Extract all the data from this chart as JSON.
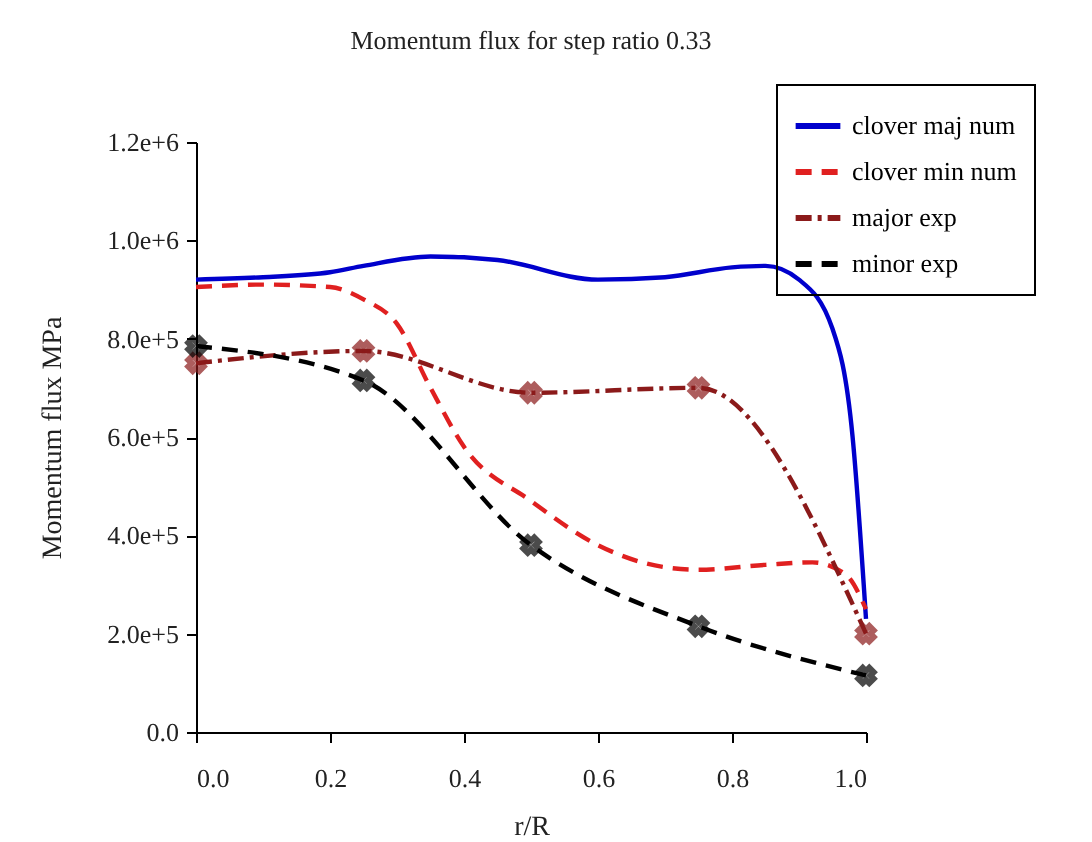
{
  "chart_data": {
    "type": "line",
    "title": "Momentum flux for step ratio 0.33",
    "xlabel": "r/R",
    "ylabel": "Momentum flux MPa",
    "xlim": [
      0,
      1
    ],
    "ylim": [
      0,
      1200000
    ],
    "xticks": [
      {
        "value": 0,
        "label": "0.0"
      },
      {
        "value": 0.2,
        "label": "0.2"
      },
      {
        "value": 0.4,
        "label": "0.4"
      },
      {
        "value": 0.6,
        "label": "0.6"
      },
      {
        "value": 0.8,
        "label": "0.8"
      },
      {
        "value": 1,
        "label": "1.0"
      }
    ],
    "yticks": [
      {
        "value": 0,
        "label": "0.0"
      },
      {
        "value": 200000,
        "label": "2.0e+5"
      },
      {
        "value": 400000,
        "label": "4.0e+5"
      },
      {
        "value": 600000,
        "label": "6.0e+5"
      },
      {
        "value": 800000,
        "label": "8.0e+5"
      },
      {
        "value": 1000000,
        "label": "1.0e+6"
      },
      {
        "value": 1200000,
        "label": "1.2e+6"
      }
    ],
    "grid": false,
    "legend": "top right",
    "series": [
      {
        "name": "clover maj num",
        "color": "#0000cc",
        "line_style": "solid",
        "marker": "none",
        "x": [
          0,
          0.1,
          0.2,
          0.25,
          0.35,
          0.45,
          0.6,
          0.7,
          0.8,
          0.85,
          0.9,
          0.95,
          0.98,
          1.0
        ],
        "values": [
          920000,
          925000,
          935000,
          948000,
          967000,
          960000,
          920000,
          925000,
          945000,
          948000,
          920000,
          820000,
          600000,
          230000
        ]
      },
      {
        "name": "clover min num",
        "color": "#e02020",
        "line_style": "dashed",
        "marker": "none",
        "x": [
          0,
          0.1,
          0.2,
          0.25,
          0.3,
          0.35,
          0.4,
          0.5,
          0.6,
          0.7,
          0.75,
          0.85,
          0.92,
          0.97,
          1.0
        ],
        "values": [
          905000,
          910000,
          905000,
          880000,
          830000,
          700000,
          580000,
          470000,
          380000,
          335000,
          330000,
          340000,
          345000,
          320000,
          250000
        ]
      },
      {
        "name": "major exp",
        "color": "#8b1a1a",
        "line_style": "dashdot",
        "marker": "cross",
        "x": [
          0,
          0.25,
          0.5,
          0.75,
          1.0
        ],
        "values": [
          750000,
          775000,
          690000,
          700000,
          200000
        ]
      },
      {
        "name": "minor exp",
        "color": "#000000",
        "line_style": "dashed",
        "marker": "cross",
        "x": [
          0,
          0.25,
          0.5,
          0.75,
          1.0
        ],
        "values": [
          785000,
          715000,
          380000,
          215000,
          115000
        ]
      }
    ]
  }
}
